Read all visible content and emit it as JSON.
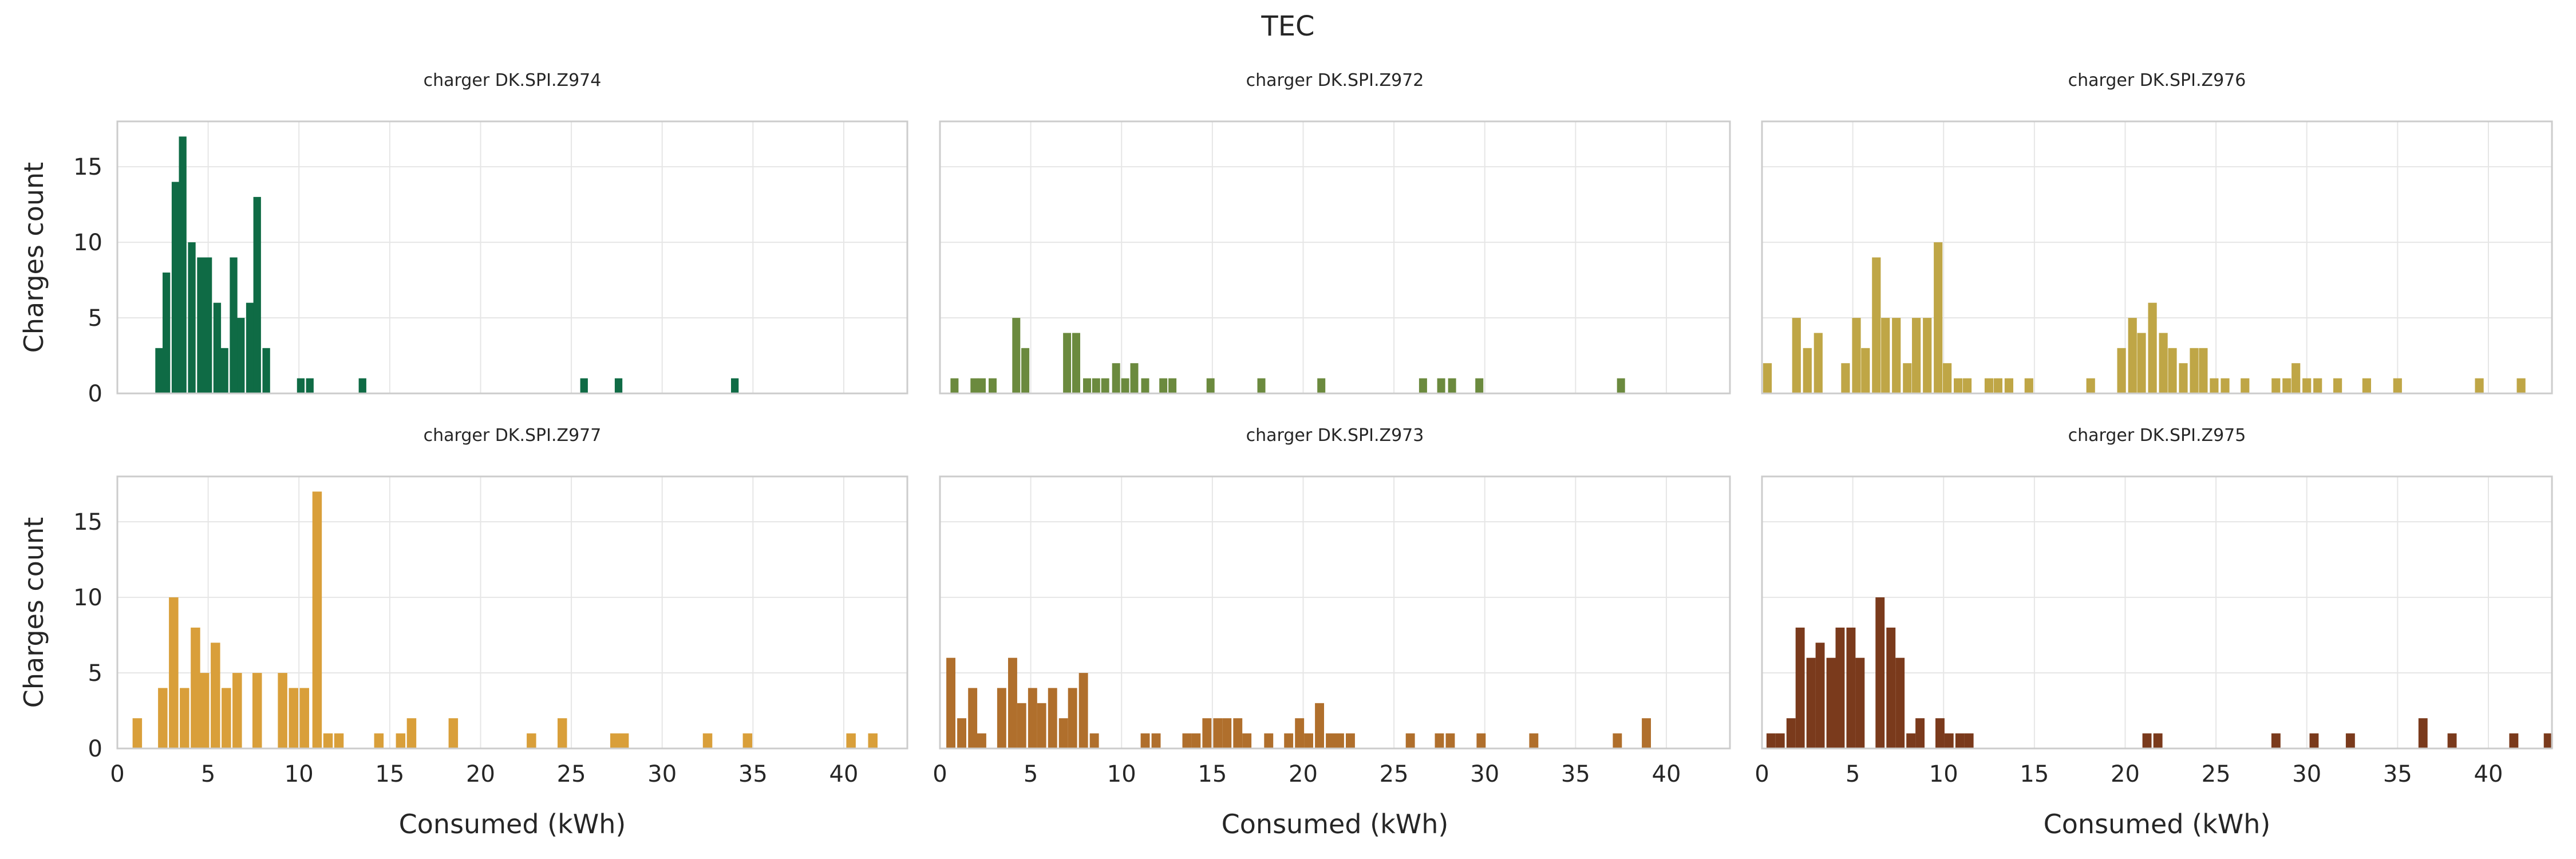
{
  "chart_data": {
    "type": "bar",
    "title": "TEC",
    "xlabel": "Consumed (kWh)",
    "ylabel": "Charges count",
    "xlim": [
      0,
      43.5
    ],
    "ylim": [
      0,
      18
    ],
    "x_ticks": [
      0,
      5,
      10,
      15,
      20,
      25,
      30,
      35,
      40
    ],
    "y_ticks": [
      0,
      5,
      10,
      15
    ],
    "grid": true,
    "panels": [
      {
        "title": "charger DK.SPI.Z974",
        "color": "#0f6b45",
        "bin_width": 0.42,
        "x": [
          2.3,
          2.7,
          3.2,
          3.6,
          4.1,
          4.6,
          5.0,
          5.5,
          5.9,
          6.4,
          6.8,
          7.3,
          7.7,
          8.2,
          8.6,
          10.1,
          10.6,
          13.5,
          25.7,
          27.6,
          34.0
        ],
        "values": [
          3,
          8,
          14,
          17,
          10,
          9,
          9,
          6,
          3,
          9,
          5,
          6,
          13,
          3,
          0,
          1,
          1,
          1,
          1,
          1,
          1
        ]
      },
      {
        "title": "charger DK.SPI.Z972",
        "color": "#6b8a3e",
        "bin_width": 0.44,
        "x": [
          0.8,
          1.9,
          2.3,
          2.9,
          4.2,
          4.7,
          7.0,
          7.5,
          8.1,
          8.6,
          9.1,
          9.7,
          10.2,
          10.7,
          11.3,
          12.3,
          12.8,
          14.9,
          17.7,
          21.0,
          26.6,
          27.6,
          28.2,
          29.7,
          37.5
        ],
        "values": [
          1,
          1,
          1,
          1,
          5,
          3,
          4,
          4,
          1,
          1,
          1,
          2,
          1,
          2,
          1,
          1,
          1,
          1,
          1,
          1,
          1,
          1,
          1,
          1,
          1
        ]
      },
      {
        "title": "charger DK.SPI.Z976",
        "color": "#bfa646",
        "bin_width": 0.48,
        "x": [
          0.3,
          1.9,
          2.5,
          3.1,
          4.6,
          5.2,
          5.7,
          6.3,
          6.8,
          7.4,
          8.0,
          8.5,
          9.1,
          9.7,
          10.2,
          10.8,
          11.3,
          12.5,
          13.0,
          13.6,
          14.7,
          18.1,
          19.8,
          20.4,
          20.9,
          21.5,
          22.1,
          22.6,
          23.2,
          23.8,
          24.3,
          24.9,
          25.5,
          26.6,
          28.3,
          28.9,
          29.4,
          30.0,
          30.6,
          31.7,
          33.3,
          35.0,
          39.5,
          41.8
        ],
        "values": [
          2,
          5,
          3,
          4,
          2,
          5,
          3,
          9,
          5,
          5,
          2,
          5,
          5,
          10,
          2,
          1,
          1,
          1,
          1,
          1,
          1,
          1,
          3,
          5,
          4,
          6,
          4,
          3,
          2,
          3,
          3,
          1,
          1,
          1,
          1,
          1,
          2,
          1,
          1,
          1,
          1,
          1,
          1,
          1
        ]
      },
      {
        "title": "charger DK.SPI.Z977",
        "color": "#d99f3a",
        "bin_width": 0.52,
        "x": [
          1.1,
          2.5,
          3.1,
          3.7,
          4.3,
          4.8,
          5.4,
          6.0,
          6.6,
          7.2,
          7.7,
          9.1,
          9.7,
          10.3,
          11.0,
          11.6,
          12.2,
          12.7,
          14.4,
          15.6,
          16.2,
          18.5,
          22.8,
          24.5,
          27.4,
          27.9,
          32.5,
          34.7,
          40.4,
          41.6
        ],
        "values": [
          2,
          4,
          10,
          4,
          8,
          5,
          7,
          4,
          5,
          0,
          5,
          5,
          4,
          4,
          17,
          1,
          1,
          0,
          1,
          1,
          2,
          2,
          1,
          2,
          1,
          1,
          1,
          1,
          1,
          1
        ]
      },
      {
        "title": "charger DK.SPI.Z973",
        "color": "#b06f2c",
        "bin_width": 0.5,
        "x": [
          0.6,
          1.2,
          1.8,
          2.3,
          3.4,
          4.0,
          4.5,
          5.1,
          5.6,
          6.2,
          6.8,
          7.3,
          7.9,
          8.5,
          9.0,
          11.3,
          11.9,
          13.6,
          14.1,
          14.7,
          15.3,
          15.8,
          16.4,
          16.9,
          18.1,
          19.2,
          19.8,
          20.3,
          20.9,
          21.5,
          22.0,
          22.6,
          25.9,
          27.5,
          28.1,
          29.8,
          32.7,
          37.3,
          38.9
        ],
        "values": [
          6,
          2,
          4,
          1,
          4,
          6,
          3,
          4,
          3,
          4,
          2,
          4,
          5,
          1,
          0,
          1,
          1,
          1,
          1,
          2,
          2,
          2,
          2,
          1,
          1,
          1,
          2,
          1,
          3,
          1,
          1,
          1,
          1,
          1,
          1,
          1,
          1,
          1,
          2
        ]
      },
      {
        "title": "charger DK.SPI.Z975",
        "color": "#7a3a1c",
        "bin_width": 0.5,
        "x": [
          0.5,
          1.0,
          1.6,
          2.1,
          2.7,
          3.2,
          3.8,
          4.3,
          4.9,
          5.4,
          6.0,
          6.5,
          7.1,
          7.6,
          8.2,
          8.7,
          9.8,
          10.3,
          10.9,
          11.4,
          21.2,
          21.8,
          28.3,
          30.4,
          32.4,
          36.4,
          38.0,
          41.4,
          43.3
        ],
        "values": [
          1,
          1,
          2,
          8,
          6,
          7,
          6,
          8,
          8,
          6,
          0,
          10,
          8,
          6,
          1,
          2,
          2,
          1,
          1,
          1,
          1,
          1,
          1,
          1,
          1,
          2,
          1,
          1,
          1
        ]
      }
    ]
  }
}
